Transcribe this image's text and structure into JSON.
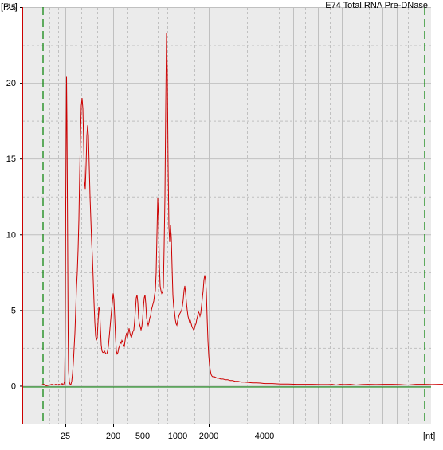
{
  "chart_data": {
    "type": "line",
    "title": "E74 Total RNA Pre-DNase",
    "xlabel": "[nt]",
    "ylabel": "[FU]",
    "ylim": [
      -2.5,
      25
    ],
    "grid": true,
    "x_tick_labels": [
      "25",
      "200",
      "500",
      "1000",
      "2000",
      "4000"
    ],
    "y_tick_labels": [
      "0",
      "5",
      "10",
      "15",
      "20",
      "25"
    ],
    "y_ticks": [
      0,
      5,
      10,
      15,
      20,
      25
    ],
    "colors": {
      "series": "#cc0000",
      "baseline": "#008000",
      "markers": "#008000",
      "grid": "#c0c0c0",
      "plot_background": "#ebebeb",
      "axis_background": "#ffffff",
      "axis_line": "#cc0000"
    },
    "series": [
      {
        "x_scale": "nt-log",
        "points": [
          [
            -10,
            0.05
          ],
          [
            -7,
            0.1
          ],
          [
            -4,
            0.0
          ],
          [
            0,
            0.05
          ],
          [
            3,
            0.1
          ],
          [
            6,
            0.05
          ],
          [
            8,
            0.1
          ],
          [
            10,
            0.05
          ],
          [
            12,
            0.1
          ],
          [
            14,
            0.05
          ],
          [
            16,
            0.15
          ],
          [
            17,
            0.05
          ],
          [
            18,
            0.1
          ],
          [
            19,
            0.3
          ],
          [
            19.5,
            2
          ],
          [
            20,
            6
          ],
          [
            20.5,
            12
          ],
          [
            21,
            16.5
          ],
          [
            21.5,
            20.4
          ],
          [
            22,
            17.5
          ],
          [
            22.5,
            13
          ],
          [
            23,
            8
          ],
          [
            23.5,
            3.5
          ],
          [
            24,
            1
          ],
          [
            25,
            0.25
          ],
          [
            26,
            0.1
          ],
          [
            27,
            0.1
          ],
          [
            28,
            0.3
          ],
          [
            29,
            0.8
          ],
          [
            30,
            1.5
          ],
          [
            31,
            2.5
          ],
          [
            32,
            3.5
          ],
          [
            33,
            5
          ],
          [
            34,
            6.5
          ],
          [
            35,
            7.5
          ],
          [
            36,
            9
          ],
          [
            37,
            11
          ],
          [
            38,
            14
          ],
          [
            39,
            16.5
          ],
          [
            40,
            18.5
          ],
          [
            41,
            19
          ],
          [
            42,
            18.3
          ],
          [
            43,
            16
          ],
          [
            44,
            13.5
          ],
          [
            45,
            13
          ],
          [
            46,
            14.5
          ],
          [
            47,
            16.5
          ],
          [
            48,
            17.2
          ],
          [
            49,
            16.5
          ],
          [
            50,
            14.5
          ],
          [
            51,
            12.5
          ],
          [
            52,
            11
          ],
          [
            53,
            9.5
          ],
          [
            54,
            8.5
          ],
          [
            55,
            7
          ],
          [
            56,
            5.5
          ],
          [
            57,
            4.2
          ],
          [
            58,
            3.3
          ],
          [
            59,
            3.0
          ],
          [
            60,
            3.2
          ],
          [
            61,
            4.2
          ],
          [
            62,
            5.2
          ],
          [
            63,
            5.0
          ],
          [
            64,
            3.8
          ],
          [
            65,
            2.7
          ],
          [
            66,
            2.3
          ],
          [
            67,
            2.2
          ],
          [
            68,
            2.2
          ],
          [
            69,
            2.3
          ],
          [
            70,
            2.2
          ],
          [
            71,
            2.1
          ],
          [
            72,
            2.1
          ],
          [
            73,
            2.3
          ],
          [
            74,
            2.6
          ],
          [
            75,
            3.2
          ],
          [
            76,
            3.8
          ],
          [
            77,
            4.4
          ],
          [
            78,
            5.0
          ],
          [
            79,
            5.5
          ],
          [
            80,
            6.1
          ],
          [
            81,
            5.7
          ],
          [
            82,
            4.5
          ],
          [
            83,
            3.2
          ],
          [
            84,
            2.3
          ],
          [
            85,
            2.1
          ],
          [
            86,
            2.2
          ],
          [
            87,
            2.5
          ],
          [
            88,
            2.6
          ],
          [
            89,
            2.9
          ],
          [
            90,
            2.8
          ],
          [
            91,
            3.0
          ],
          [
            92,
            2.9
          ],
          [
            93,
            2.7
          ],
          [
            94,
            2.6
          ],
          [
            95,
            3.0
          ],
          [
            96,
            3.3
          ],
          [
            97,
            3.5
          ],
          [
            98,
            3.2
          ],
          [
            99,
            3.5
          ],
          [
            100,
            3.8
          ],
          [
            101,
            3.5
          ],
          [
            102,
            3.3
          ],
          [
            103,
            3.2
          ],
          [
            104,
            3.4
          ],
          [
            105,
            3.6
          ],
          [
            106,
            3.7
          ],
          [
            107,
            4.3
          ],
          [
            108,
            5.0
          ],
          [
            109,
            5.8
          ],
          [
            110,
            6.0
          ],
          [
            111,
            5.5
          ],
          [
            112,
            4.5
          ],
          [
            113,
            4.1
          ],
          [
            114,
            3.9
          ],
          [
            115,
            3.7
          ],
          [
            116,
            3.9
          ],
          [
            117,
            4.4
          ],
          [
            118,
            5.2
          ],
          [
            119,
            5.8
          ],
          [
            120,
            6.0
          ],
          [
            121,
            5.4
          ],
          [
            122,
            4.5
          ],
          [
            123,
            4.2
          ],
          [
            124,
            4.0
          ],
          [
            125,
            4.2
          ],
          [
            126,
            4.5
          ],
          [
            127,
            4.6
          ],
          [
            128,
            5.0
          ],
          [
            129,
            5.2
          ],
          [
            130,
            5.4
          ],
          [
            131,
            5.6
          ],
          [
            132,
            6.0
          ],
          [
            133,
            6.3
          ],
          [
            134,
            7.5
          ],
          [
            135,
            10
          ],
          [
            136,
            12.4
          ],
          [
            137,
            11.0
          ],
          [
            138,
            8.0
          ],
          [
            139,
            6.6
          ],
          [
            140,
            6.3
          ],
          [
            141,
            6.1
          ],
          [
            142,
            6.2
          ],
          [
            143,
            6.5
          ],
          [
            144,
            9.2
          ],
          [
            145,
            12.5
          ],
          [
            146,
            18.5
          ],
          [
            147,
            23.3
          ],
          [
            148,
            20.5
          ],
          [
            149,
            14.5
          ],
          [
            150,
            10.5
          ],
          [
            151,
            9.5
          ],
          [
            152,
            10.6
          ],
          [
            153,
            9.8
          ],
          [
            154,
            7.8
          ],
          [
            155,
            6.0
          ],
          [
            156,
            5.2
          ],
          [
            157,
            4.9
          ],
          [
            158,
            4.4
          ],
          [
            159,
            4.1
          ],
          [
            160,
            4.0
          ],
          [
            161,
            4.3
          ],
          [
            162,
            4.5
          ],
          [
            163,
            4.7
          ],
          [
            164,
            4.8
          ],
          [
            165,
            4.9
          ],
          [
            166,
            5.0
          ],
          [
            167,
            5.3
          ],
          [
            168,
            5.7
          ],
          [
            169,
            6.3
          ],
          [
            170,
            6.6
          ],
          [
            171,
            6.1
          ],
          [
            172,
            5.5
          ],
          [
            173,
            5.0
          ],
          [
            174,
            4.6
          ],
          [
            175,
            4.4
          ],
          [
            176,
            4.2
          ],
          [
            177,
            4.3
          ],
          [
            178,
            4.1
          ],
          [
            179,
            3.9
          ],
          [
            180,
            3.8
          ],
          [
            181,
            3.7
          ],
          [
            182,
            3.8
          ],
          [
            183,
            4.0
          ],
          [
            184,
            4.1
          ],
          [
            185,
            4.4
          ],
          [
            186,
            4.6
          ],
          [
            187,
            4.9
          ],
          [
            188,
            4.8
          ],
          [
            189,
            4.6
          ],
          [
            190,
            4.8
          ],
          [
            191,
            5.3
          ],
          [
            192,
            5.8
          ],
          [
            193,
            6.3
          ],
          [
            194,
            7.0
          ],
          [
            195,
            7.3
          ],
          [
            196,
            7.0
          ],
          [
            197,
            6.2
          ],
          [
            198,
            4.5
          ],
          [
            199,
            3.0
          ],
          [
            200,
            2.0
          ],
          [
            201,
            1.4
          ],
          [
            202,
            1.0
          ],
          [
            203,
            0.75
          ],
          [
            204,
            0.65
          ],
          [
            205,
            0.6
          ],
          [
            207,
            0.6
          ],
          [
            209,
            0.55
          ],
          [
            211,
            0.5
          ],
          [
            213,
            0.5
          ],
          [
            215,
            0.45
          ],
          [
            218,
            0.45
          ],
          [
            221,
            0.4
          ],
          [
            224,
            0.4
          ],
          [
            227,
            0.35
          ],
          [
            230,
            0.35
          ],
          [
            233,
            0.3
          ],
          [
            237,
            0.3
          ],
          [
            241,
            0.25
          ],
          [
            245,
            0.25
          ],
          [
            250,
            0.22
          ],
          [
            255,
            0.2
          ],
          [
            260,
            0.2
          ],
          [
            265,
            0.18
          ],
          [
            270,
            0.15
          ],
          [
            280,
            0.15
          ],
          [
            290,
            0.12
          ],
          [
            300,
            0.12
          ],
          [
            310,
            0.1
          ],
          [
            320,
            0.1
          ],
          [
            330,
            0.1
          ],
          [
            340,
            0.08
          ],
          [
            350,
            0.08
          ],
          [
            355,
            0.1
          ],
          [
            360,
            0.05
          ],
          [
            365,
            0.1
          ],
          [
            370,
            0.08
          ],
          [
            378,
            0.1
          ],
          [
            385,
            0.05
          ],
          [
            392,
            0.08
          ],
          [
            400,
            0.1
          ],
          [
            410,
            0.08
          ],
          [
            420,
            0.1
          ],
          [
            430,
            0.1
          ],
          [
            440,
            0.08
          ],
          [
            450,
            0.05
          ],
          [
            460,
            0.1
          ],
          [
            470,
            0.1
          ],
          [
            480,
            0.08
          ],
          [
            490,
            0.1
          ],
          [
            500,
            0.1
          ],
          [
            505,
            0.08
          ],
          [
            510,
            0.05
          ],
          [
            513,
            0.1
          ]
        ]
      }
    ]
  }
}
